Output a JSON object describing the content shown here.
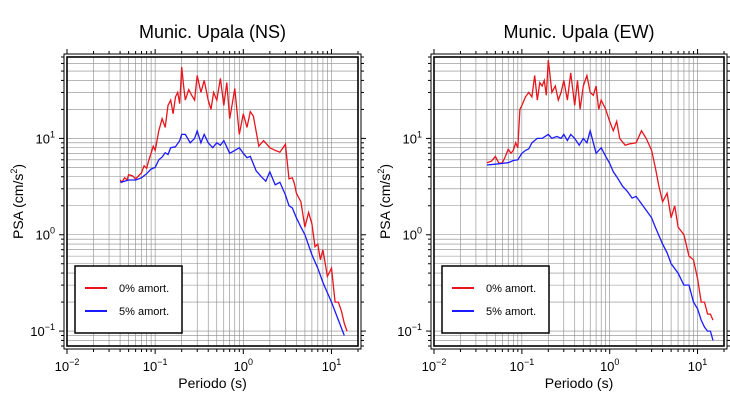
{
  "chart_data": [
    {
      "type": "line",
      "title": "Munic. Upala (NS)",
      "xlabel": "Periodo (s)",
      "ylabel_base": "PSA (cm/s",
      "ylabel_sup": "2",
      "ylabel_end": ")",
      "xscale": "log",
      "yscale": "log",
      "xlim": [
        0.01,
        20
      ],
      "ylim": [
        0.07,
        70
      ],
      "grid": true,
      "legend_position": "bottom-left",
      "xticks": [
        {
          "value": 0.01,
          "base": "10",
          "exp": "−2"
        },
        {
          "value": 0.1,
          "base": "10",
          "exp": "−1"
        },
        {
          "value": 1,
          "base": "10",
          "exp": "0"
        },
        {
          "value": 10,
          "base": "10",
          "exp": "1"
        }
      ],
      "yticks": [
        {
          "value": 0.1,
          "base": "10",
          "exp": "−1"
        },
        {
          "value": 1,
          "base": "10",
          "exp": "0"
        },
        {
          "value": 10,
          "base": "10",
          "exp": "1"
        }
      ],
      "series": [
        {
          "name": "0% amort.",
          "color": "#e8141b",
          "x": [
            0.04,
            0.042,
            0.045,
            0.048,
            0.05,
            0.055,
            0.06,
            0.065,
            0.07,
            0.075,
            0.08,
            0.085,
            0.09,
            0.095,
            0.1,
            0.11,
            0.12,
            0.13,
            0.14,
            0.15,
            0.16,
            0.17,
            0.18,
            0.19,
            0.2,
            0.21,
            0.22,
            0.24,
            0.26,
            0.28,
            0.3,
            0.33,
            0.36,
            0.4,
            0.43,
            0.46,
            0.5,
            0.55,
            0.6,
            0.65,
            0.7,
            0.75,
            0.8,
            0.9,
            1.0,
            1.1,
            1.2,
            1.3,
            1.5,
            1.7,
            2.0,
            2.3,
            2.6,
            3.0,
            3.3,
            3.6,
            3.8,
            4.0,
            4.5,
            5,
            5.5,
            6,
            6.5,
            7,
            7.5,
            8,
            9,
            10,
            11,
            12,
            13,
            14,
            15
          ],
          "y": [
            3.7,
            3.5,
            3.9,
            3.7,
            4.2,
            4.1,
            3.8,
            4.1,
            4.4,
            5.2,
            4.9,
            6.0,
            7.0,
            8.3,
            7.5,
            12.0,
            16.0,
            13.0,
            22.0,
            25.0,
            18.0,
            27.0,
            30.0,
            23.0,
            55.0,
            35.0,
            25.0,
            32.0,
            28.0,
            25.0,
            45.0,
            30.0,
            40.0,
            25.0,
            20.0,
            30.0,
            25.0,
            42.0,
            22.0,
            38.0,
            16.0,
            23.0,
            33.0,
            11.0,
            18.0,
            13.0,
            19.0,
            17.0,
            8.3,
            9.5,
            8.0,
            7.5,
            7.2,
            8.7,
            3.8,
            3.9,
            3.4,
            2.7,
            2.2,
            1.2,
            1.7,
            1.3,
            0.75,
            0.8,
            0.55,
            0.7,
            0.37,
            0.45,
            0.2,
            0.2,
            0.16,
            0.12,
            0.1
          ]
        },
        {
          "name": "5% amort.",
          "color": "#1a1aff",
          "x": [
            0.04,
            0.045,
            0.05,
            0.06,
            0.07,
            0.08,
            0.09,
            0.1,
            0.11,
            0.12,
            0.13,
            0.14,
            0.15,
            0.17,
            0.19,
            0.2,
            0.22,
            0.25,
            0.28,
            0.3,
            0.33,
            0.36,
            0.4,
            0.45,
            0.5,
            0.55,
            0.6,
            0.7,
            0.8,
            0.9,
            1.0,
            1.1,
            1.2,
            1.4,
            1.6,
            1.8,
            2.0,
            2.3,
            2.6,
            3.0,
            3.3,
            3.6,
            4.0,
            4.5,
            5,
            6,
            7,
            8,
            9,
            10,
            12,
            14
          ],
          "y": [
            3.5,
            3.6,
            3.7,
            3.7,
            3.9,
            4.3,
            4.8,
            5.0,
            6.0,
            6.4,
            7.1,
            6.8,
            8.0,
            8.2,
            9.5,
            11.0,
            11.0,
            9.0,
            10.0,
            12.0,
            9.0,
            11.0,
            9.0,
            8.0,
            9.0,
            8.5,
            9.5,
            7.0,
            7.5,
            8.0,
            7.0,
            6.3,
            6.5,
            4.6,
            4.0,
            3.6,
            4.5,
            3.3,
            3.5,
            2.6,
            2.0,
            1.9,
            1.5,
            1.2,
            1.0,
            0.62,
            0.45,
            0.32,
            0.25,
            0.2,
            0.13,
            0.09
          ]
        }
      ]
    },
    {
      "type": "line",
      "title": "Munic. Upala (EW)",
      "xlabel": "Periodo (s)",
      "ylabel_base": "PSA (cm/s",
      "ylabel_sup": "2",
      "ylabel_end": ")",
      "xscale": "log",
      "yscale": "log",
      "xlim": [
        0.01,
        20
      ],
      "ylim": [
        0.07,
        70
      ],
      "grid": true,
      "legend_position": "bottom-left",
      "xticks": [
        {
          "value": 0.01,
          "base": "10",
          "exp": "−2"
        },
        {
          "value": 0.1,
          "base": "10",
          "exp": "−1"
        },
        {
          "value": 1,
          "base": "10",
          "exp": "0"
        },
        {
          "value": 10,
          "base": "10",
          "exp": "1"
        }
      ],
      "yticks": [
        {
          "value": 0.1,
          "base": "10",
          "exp": "−1"
        },
        {
          "value": 1,
          "base": "10",
          "exp": "0"
        },
        {
          "value": 10,
          "base": "10",
          "exp": "1"
        }
      ],
      "series": [
        {
          "name": "0% amort.",
          "color": "#e8141b",
          "x": [
            0.04,
            0.045,
            0.05,
            0.055,
            0.06,
            0.065,
            0.07,
            0.075,
            0.08,
            0.085,
            0.09,
            0.095,
            0.1,
            0.11,
            0.12,
            0.13,
            0.14,
            0.15,
            0.16,
            0.17,
            0.18,
            0.19,
            0.2,
            0.22,
            0.24,
            0.26,
            0.28,
            0.3,
            0.33,
            0.36,
            0.4,
            0.43,
            0.46,
            0.5,
            0.55,
            0.6,
            0.65,
            0.7,
            0.75,
            0.8,
            0.9,
            1.0,
            1.1,
            1.2,
            1.3,
            1.5,
            1.7,
            2.0,
            2.3,
            2.6,
            3.0,
            3.3,
            3.6,
            4.0,
            4.5,
            5,
            5.5,
            6,
            7,
            8,
            9,
            10,
            11,
            12,
            13,
            14,
            15
          ],
          "y": [
            5.6,
            5.8,
            6.5,
            5.5,
            5.6,
            6.5,
            7.7,
            7.0,
            7.5,
            9.0,
            8.0,
            20.0,
            22.0,
            27.0,
            30.0,
            27.0,
            45.0,
            25.0,
            38.0,
            35.0,
            40.0,
            28.0,
            65.0,
            30.0,
            35.0,
            25.0,
            30.0,
            40.0,
            25.0,
            48.0,
            22.0,
            40.0,
            20.0,
            35.0,
            45.0,
            30.0,
            28.0,
            35.0,
            20.0,
            25.0,
            20.0,
            15.0,
            12.0,
            15.0,
            10.0,
            8.5,
            8.8,
            9.0,
            12.0,
            10.0,
            7.5,
            5.0,
            3.3,
            2.2,
            2.7,
            1.5,
            2.0,
            1.2,
            1.0,
            0.6,
            0.55,
            0.35,
            0.2,
            0.2,
            0.15,
            0.15,
            0.13
          ]
        },
        {
          "name": "5% amort.",
          "color": "#1a1aff",
          "x": [
            0.04,
            0.05,
            0.06,
            0.07,
            0.08,
            0.09,
            0.1,
            0.11,
            0.12,
            0.13,
            0.15,
            0.17,
            0.2,
            0.22,
            0.25,
            0.28,
            0.3,
            0.33,
            0.36,
            0.4,
            0.45,
            0.5,
            0.55,
            0.6,
            0.7,
            0.8,
            0.9,
            1.0,
            1.1,
            1.2,
            1.4,
            1.6,
            1.8,
            2.0,
            2.3,
            2.6,
            3.0,
            3.3,
            3.6,
            4.0,
            4.5,
            5,
            6,
            7,
            8,
            9,
            10,
            11,
            12,
            13,
            14,
            15
          ],
          "y": [
            5.3,
            5.4,
            5.5,
            5.6,
            5.9,
            6.0,
            7.0,
            7.5,
            7.8,
            9.0,
            10.0,
            10.0,
            11.0,
            10.0,
            10.5,
            10.0,
            11.0,
            9.5,
            11.0,
            10.0,
            8.5,
            10.0,
            9.0,
            12.0,
            7.0,
            8.0,
            6.5,
            5.5,
            4.5,
            4.0,
            3.2,
            2.8,
            2.4,
            2.5,
            2.1,
            1.8,
            1.5,
            1.2,
            1.0,
            0.8,
            0.65,
            0.5,
            0.4,
            0.3,
            0.3,
            0.2,
            0.17,
            0.13,
            0.11,
            0.1,
            0.1,
            0.08
          ]
        }
      ]
    }
  ]
}
